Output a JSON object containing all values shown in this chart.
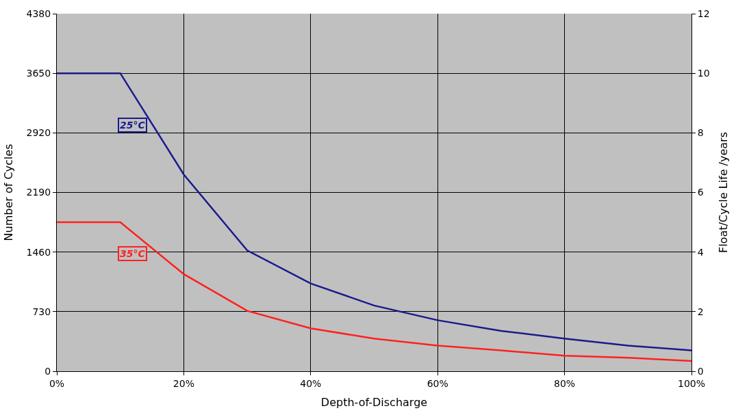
{
  "chart_data": {
    "type": "line",
    "xlabel": "Depth-of-Discharge",
    "ylabel": "Number of Cycles",
    "y2label": "Float/Cycle Life /years",
    "x": [
      0,
      10,
      20,
      30,
      40,
      50,
      60,
      70,
      80,
      90,
      100
    ],
    "series": [
      {
        "name": "25°C",
        "color": "#1a1a8c",
        "values": [
          3650,
          3650,
          2410,
          1480,
          1075,
          805,
          625,
          495,
          400,
          315,
          255
        ]
      },
      {
        "name": "35°C",
        "color": "#ff2020",
        "values": [
          1825,
          1825,
          1190,
          740,
          525,
          400,
          315,
          255,
          190,
          165,
          125
        ]
      }
    ],
    "xlim": [
      0,
      100
    ],
    "xticks": [
      {
        "value": 0,
        "label": "0%"
      },
      {
        "value": 20,
        "label": "20%"
      },
      {
        "value": 40,
        "label": "40%"
      },
      {
        "value": 60,
        "label": "60%"
      },
      {
        "value": 80,
        "label": "80%"
      },
      {
        "value": 100,
        "label": "100%"
      }
    ],
    "ylim": [
      0,
      4380
    ],
    "yticks": [
      0,
      730,
      1460,
      2190,
      2920,
      3650,
      4380
    ],
    "y2lim": [
      0,
      12
    ],
    "y2ticks": [
      0,
      2,
      4,
      6,
      8,
      10,
      12
    ],
    "grid": true,
    "legend": false,
    "marker": "none",
    "line_style": "solid"
  }
}
